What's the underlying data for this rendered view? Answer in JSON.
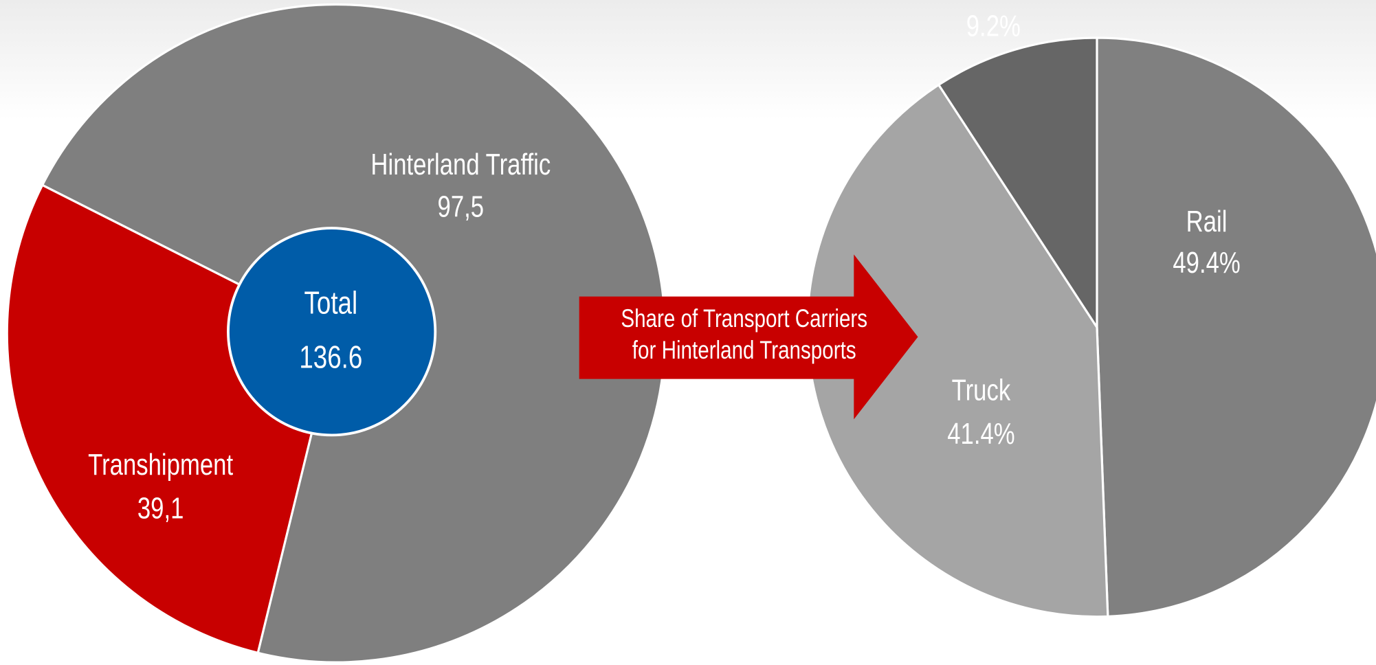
{
  "chart_data": [
    {
      "type": "donut",
      "categories": [
        "Hinterland Traffic",
        "Transhipment"
      ],
      "values": [
        97.5,
        39.1
      ],
      "value_labels": [
        "97,5",
        "39,1"
      ],
      "colors": [
        "#7f7f7f",
        "#c80000"
      ],
      "center_label": "Total",
      "center_value": 136.6,
      "center_color": "#005ca8"
    },
    {
      "type": "pie",
      "title": [
        "Share of Transport Carriers",
        "for Hinterland Transports"
      ],
      "categories": [
        "Rail",
        "Truck",
        null
      ],
      "values": [
        49.4,
        41.4,
        9.2
      ],
      "value_labels": [
        "49.4%",
        "41.4%",
        "9.2%"
      ],
      "colors": [
        "#808080",
        "#a5a5a5",
        "#666666"
      ]
    }
  ]
}
